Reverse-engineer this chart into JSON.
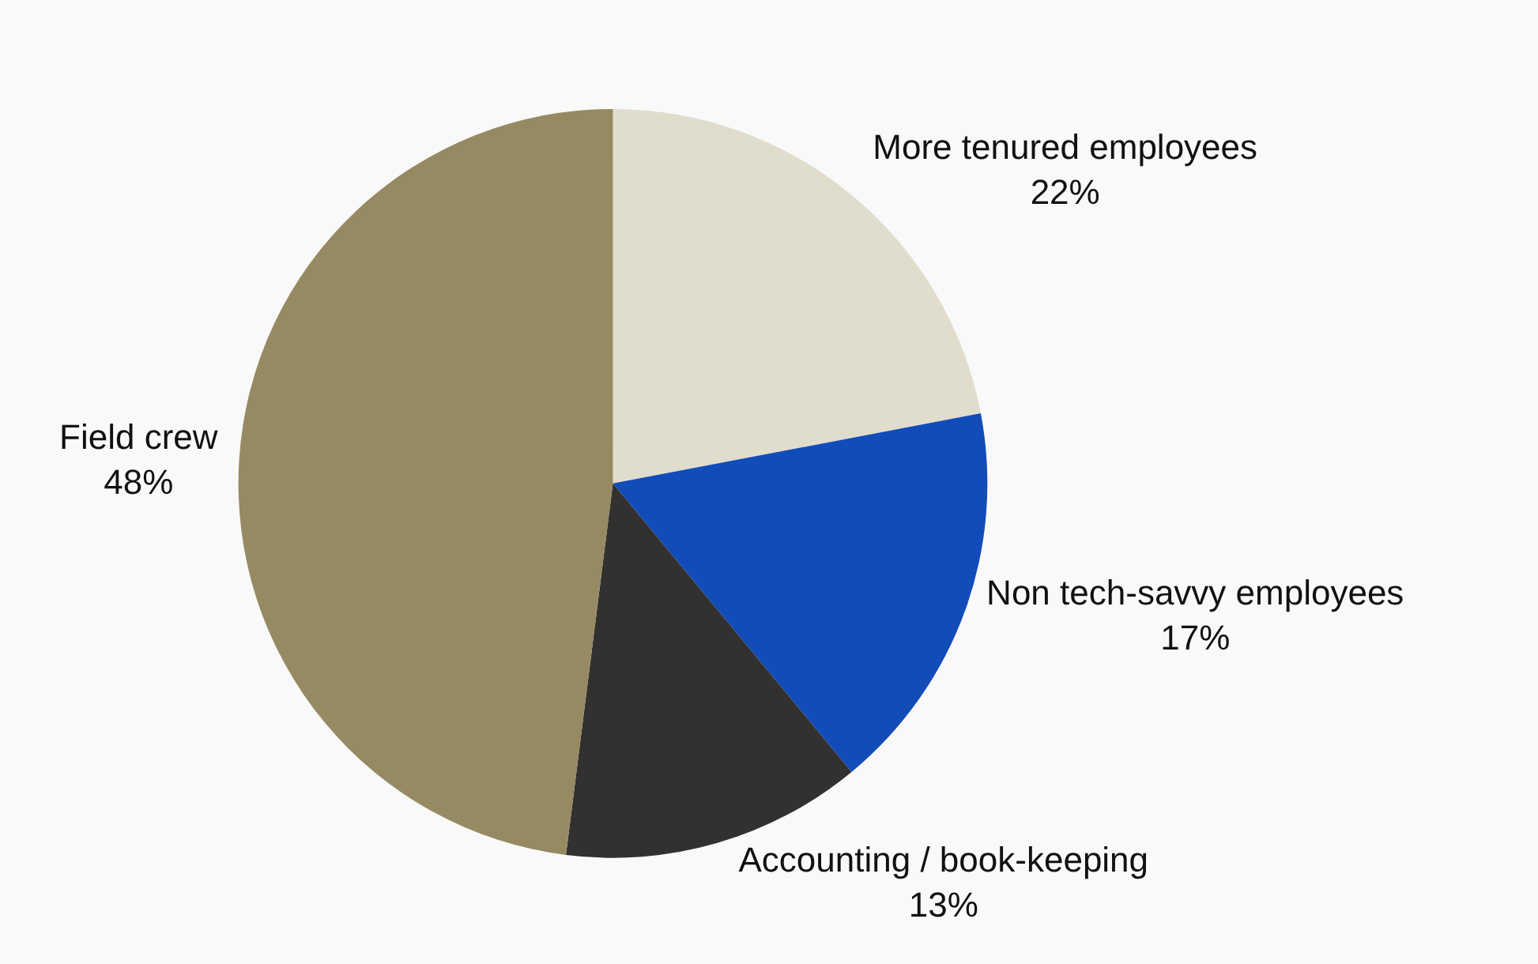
{
  "chart_data": {
    "type": "pie",
    "categories": [
      "More tenured employees",
      "Non tech-savvy employees",
      "Accounting / book-keeping",
      "Field crew"
    ],
    "values": [
      22,
      17,
      13,
      48
    ],
    "value_labels": [
      "22%",
      "17%",
      "13%",
      "48%"
    ],
    "colors": [
      "#e0ddcd",
      "#124cb9",
      "#323130",
      "#968a63"
    ],
    "legend": false
  }
}
